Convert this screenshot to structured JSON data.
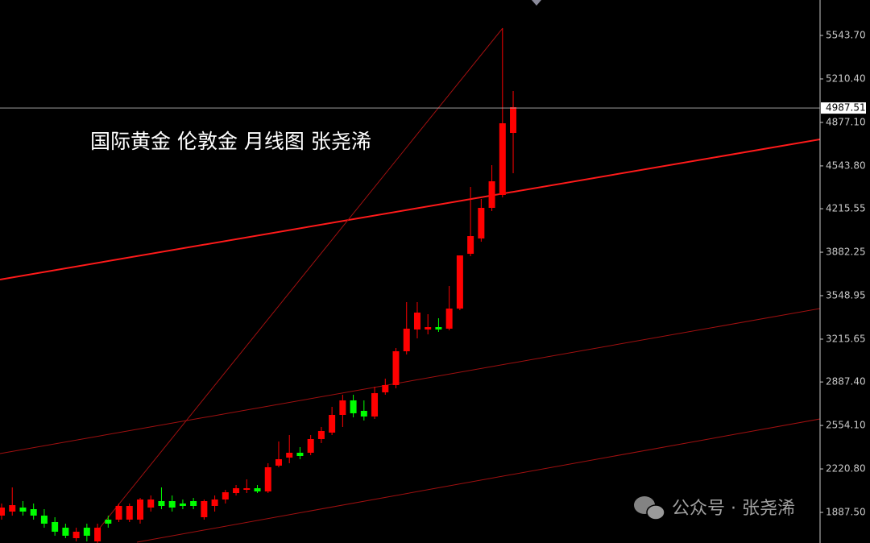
{
  "chart_data": {
    "type": "candlestick",
    "title": "国际黄金 伦敦金 月线图 张尧浠",
    "watermark": "公众号 · 张尧浠",
    "categories": [
      null,
      null,
      null,
      null,
      null,
      null,
      null,
      null,
      null,
      null,
      null,
      null,
      null,
      null,
      null,
      null,
      null,
      null,
      null,
      null,
      null,
      null,
      null,
      null,
      null,
      null,
      null,
      null,
      null,
      null,
      null,
      null,
      null,
      null,
      null,
      null,
      null,
      null,
      null,
      null,
      null,
      null,
      null,
      null,
      null,
      null,
      null,
      null,
      null
    ],
    "open": [
      1863,
      1893.9,
      1924.8,
      1912.4,
      1863,
      1813.6,
      1770.4,
      1690.1,
      1770.4,
      1665.4,
      1832.2,
      1832.2,
      1832.2,
      1832.2,
      1924.8,
      1974.2,
      1974.2,
      1955.7,
      1974.2,
      1850.7,
      1937.1,
      1986.5,
      2035.9,
      2060.6,
      2073,
      2048.3,
      2246,
      2307.7,
      2344.8,
      2344.8,
      2449.8,
      2499.2,
      2635,
      2746.2,
      2666,
      2622.8,
      2808,
      2863.6,
      3122.9,
      3289.6,
      3289.6,
      3308,
      3296,
      3450,
      3870,
      3987.4,
      4222.1,
      4320.9,
      4796.4
    ],
    "high": [
      1955.7,
      2079.2,
      1974.2,
      1955.7,
      1912.4,
      1850.7,
      1801.3,
      1770.4,
      1801.3,
      1801.3,
      1863,
      1955.7,
      1955.7,
      1998.9,
      2017.4,
      2079.2,
      2017.4,
      1986.5,
      1998.9,
      1986.5,
      2017.4,
      2060.6,
      2097.7,
      2141,
      2097.7,
      2264.5,
      2431.2,
      2480.7,
      2388,
      2480.7,
      2542.4,
      2696.8,
      2789.5,
      2789.5,
      2746.2,
      2851.2,
      2913,
      3147.6,
      3499.5,
      3499.5,
      3407,
      3376,
      3623,
      3857.6,
      4382.6,
      4290,
      4549.4,
      5599.3,
      5117.6
    ],
    "low": [
      1832.2,
      1863,
      1863,
      1832.2,
      1770.4,
      1708.7,
      1690.1,
      1665.4,
      1665.4,
      1653,
      1770.4,
      1813.6,
      1813.6,
      1801.3,
      1893.9,
      1912.4,
      1893.9,
      1912.4,
      1912.4,
      1832.2,
      1893.9,
      1955.7,
      2017.4,
      2035.9,
      2035.9,
      2035.9,
      2233.6,
      2264.5,
      2295.4,
      2326.2,
      2418.9,
      2480.7,
      2542.4,
      2616.5,
      2591.8,
      2604.1,
      2789.5,
      2838.9,
      3098.2,
      3221.7,
      3252.6,
      3271,
      3283.4,
      3437.8,
      3851.5,
      3962.6,
      4197.4,
      4302.3,
      4487.6
    ],
    "close": [
      1924.8,
      1943.3,
      1893.9,
      1863,
      1801.3,
      1739.5,
      1708.7,
      1739.5,
      1708.7,
      1770.4,
      1801.3,
      1937.1,
      1937.1,
      1986.5,
      1986.5,
      1937.1,
      1924.8,
      1937.1,
      1937.1,
      1974.2,
      1986.5,
      2042.1,
      2073,
      2073,
      2048.3,
      2233.6,
      2295.4,
      2344.8,
      2320,
      2449.8,
      2511.5,
      2635,
      2746.2,
      2647.4,
      2622.8,
      2801.8,
      2863.6,
      3122.9,
      3296,
      3419.3,
      3308,
      3289.6,
      3450,
      3857.6,
      4005.9,
      4222.1,
      4425.8,
      4870.5,
      4994
    ],
    "up_color": "#ff0000",
    "down_color": "#00ff00",
    "last_price": 4987.51,
    "ylim": [
      1653,
      5815.5
    ],
    "yticks": [
      {
        "value": 5543.7,
        "label": "5543.70"
      },
      {
        "value": 5210.4,
        "label": "5210.40"
      },
      {
        "value": 4877.1,
        "label": "4877.10"
      },
      {
        "value": 4543.8,
        "label": "4543.80"
      },
      4215.55,
      3882.25,
      3548.95,
      3215.65,
      {
        "value": 2887.4,
        "label": "2887.40"
      },
      {
        "value": 2554.1,
        "label": "2554.10"
      },
      {
        "value": 2220.8,
        "label": "2220.80"
      },
      {
        "value": 1887.5,
        "label": "1887.50"
      }
    ]
  }
}
